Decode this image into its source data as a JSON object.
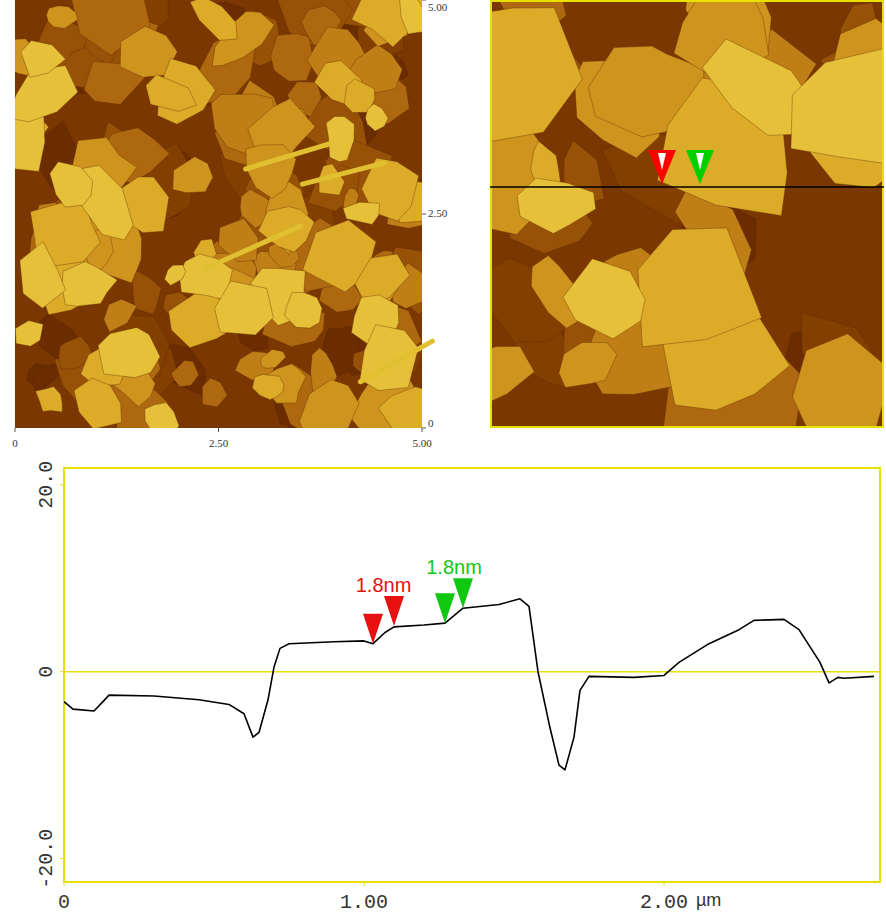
{
  "chart_data": [
    {
      "type": "image",
      "xlim": [
        0,
        5
      ],
      "ylim": [
        0,
        5
      ],
      "xticks": [
        0,
        {
          "value": 2.5,
          "label": "2.50"
        },
        {
          "value": 5,
          "label": "5.00"
        }
      ],
      "yticks": [
        0,
        {
          "value": 2.5,
          "label": "2.50"
        },
        {
          "value": 5,
          "label": "5.00"
        }
      ]
    },
    {
      "type": "image",
      "tick_labels": false,
      "colors": [
        "#ff0000",
        "#00d000"
      ]
    },
    {
      "type": "line",
      "x": [
        0,
        0.03,
        0.1,
        0.13,
        0.15,
        0.3,
        0.45,
        0.55,
        0.6,
        0.63,
        0.65,
        0.68,
        0.7,
        0.72,
        0.75,
        0.9,
        1.0,
        1.03,
        1.07,
        1.1,
        1.2,
        1.27,
        1.3,
        1.33,
        1.45,
        1.52,
        1.55,
        1.58,
        1.62,
        1.65,
        1.67,
        1.7,
        1.72,
        1.75,
        1.9,
        2.0,
        2.05,
        2.15,
        2.25,
        2.3,
        2.4,
        2.45,
        2.52,
        2.55,
        2.58,
        2.6,
        2.7
      ],
      "series": [
        {
          "color": "#000000",
          "values": [
            -3.2,
            -4.0,
            -4.2,
            -3.2,
            -2.5,
            -2.6,
            -3.0,
            -3.5,
            -4.5,
            -7.0,
            -6.5,
            -3.0,
            0.5,
            2.5,
            3.0,
            3.2,
            3.3,
            3.0,
            4.2,
            4.8,
            5.0,
            5.2,
            6.0,
            6.8,
            7.2,
            7.8,
            7.0,
            0,
            -6,
            -10,
            -10.5,
            -7,
            -2,
            -0.5,
            -0.6,
            -0.4,
            1,
            3,
            4.5,
            5.5,
            5.6,
            4.5,
            1,
            -1.2,
            -0.6,
            -0.7,
            -0.5
          ]
        }
      ],
      "xlim": [
        0,
        2.72
      ],
      "ylim": [
        -22.5,
        21.8
      ],
      "xticks": [
        0,
        {
          "value": 1,
          "label": "1.00"
        },
        {
          "value": 2,
          "label": "2.00"
        }
      ],
      "yticks": [
        {
          "value": -20,
          "label": "-20.0"
        },
        0,
        {
          "value": 20,
          "label": "20.0"
        }
      ],
      "x_label": "µm",
      "grid": false,
      "annotations": [
        {
          "label": "1.8nm",
          "color": "#e81010",
          "x": [
            1.03,
            1.1
          ],
          "y": [
            3.0,
            4.9
          ]
        },
        {
          "label": "1.8nm",
          "color": "#10c810",
          "x": [
            1.27,
            1.33
          ],
          "y": [
            5.2,
            6.8
          ]
        }
      ]
    }
  ]
}
